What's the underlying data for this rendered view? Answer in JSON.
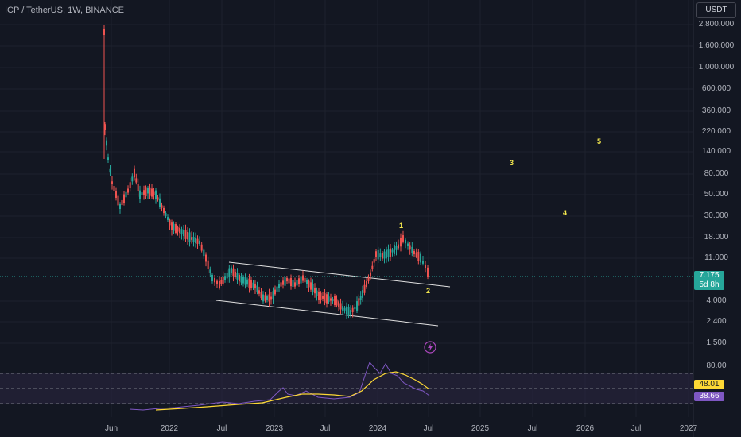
{
  "header": {
    "title": "ICP / TetherUS, 1W, BINANCE",
    "currency": "USDT"
  },
  "price_axis": {
    "labels": [
      "2,800.000",
      "1,600.000",
      "1,000.000",
      "600.000",
      "360.000",
      "220.000",
      "140.000",
      "80.000",
      "50.000",
      "30.000",
      "18.000",
      "11.000",
      "4.000",
      "2.400",
      "1.500"
    ]
  },
  "current_price": {
    "value": "7.175",
    "countdown": "5d 8h"
  },
  "rsi": {
    "axis_label": "80.00",
    "value_1": "48.01",
    "value_2": "38.66"
  },
  "time_axis": {
    "labels": [
      "Jun",
      "2022",
      "Jul",
      "2023",
      "Jul",
      "2024",
      "Jul",
      "2025",
      "Jul",
      "2026",
      "Jul",
      "2027"
    ]
  },
  "wave_labels": [
    "1",
    "2",
    "3",
    "4",
    "5"
  ],
  "colors": {
    "background": "#131722",
    "up": "#26a69a",
    "down": "#ef5350",
    "rsi_line": "#7e57c2",
    "rsi_ma": "#fdd835",
    "wave": "#f5e94e"
  }
}
